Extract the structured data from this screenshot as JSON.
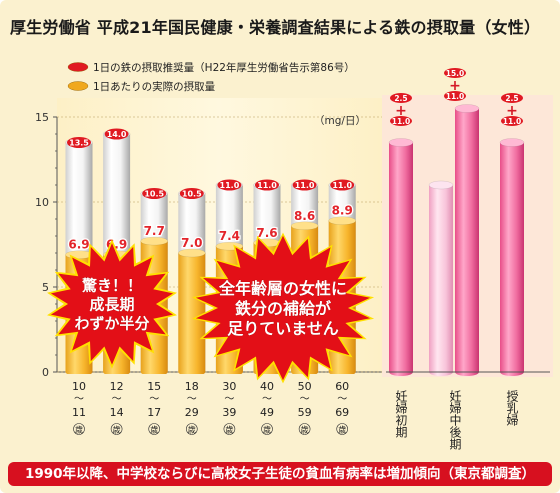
{
  "chart_data": {
    "type": "bar",
    "title": "厚生労働省 平成21年国民健康・栄養調査結果による鉄の摂取量（女性）",
    "unit_label": "（mg/日）",
    "ylim": [
      0,
      15
    ],
    "yticks": [
      "0",
      "5",
      "10",
      "15"
    ],
    "legend": [
      {
        "label": "1日の鉄の摂取推奨量（H22年厚生労働省告示第86号）",
        "color": "#e01a22"
      },
      {
        "label": "1日あたりの実際の摂取量",
        "color": "#f0a81e"
      }
    ],
    "categories": [
      {
        "top": "10",
        "bottom": "11"
      },
      {
        "top": "12",
        "bottom": "14"
      },
      {
        "top": "15",
        "bottom": "17"
      },
      {
        "top": "18",
        "bottom": "29"
      },
      {
        "top": "30",
        "bottom": "39"
      },
      {
        "top": "40",
        "bottom": "49"
      },
      {
        "top": "50",
        "bottom": "59"
      },
      {
        "top": "60",
        "bottom": "69"
      }
    ],
    "tilde": "〜",
    "age_unit": "歳",
    "series": [
      {
        "name": "1日の鉄の摂取推奨量",
        "values": [
          13.5,
          14.0,
          10.5,
          10.5,
          11.0,
          11.0,
          11.0,
          11.0
        ],
        "labels": [
          "13.5",
          "14.0",
          "10.5",
          "10.5",
          "11.0",
          "11.0",
          "11.0",
          "11.0"
        ]
      },
      {
        "name": "1日あたりの実際の摂取量",
        "values": [
          6.9,
          6.9,
          7.7,
          7.0,
          7.4,
          7.6,
          8.6,
          8.9
        ],
        "labels": [
          "6.9",
          "6.9",
          "7.7",
          "7.0",
          "7.4",
          "7.6",
          "8.6",
          "8.9"
        ]
      }
    ],
    "pregnancy_categories": [
      "妊婦初期",
      "妊婦中後期",
      "授乳婦"
    ],
    "pregnancy_series": [
      {
        "base": 11.0,
        "add": 2.5,
        "base_label": "11.0",
        "add_label": "2.5"
      },
      {
        "base": 11.0,
        "add": 15.0,
        "base_label": "11.0",
        "add_label": "15.0"
      },
      {
        "base": 11.0,
        "add": 2.5,
        "base_label": "11.0",
        "add_label": "2.5"
      }
    ],
    "pregnancy_bar_values": [
      13.5,
      11.0,
      15.5,
      13.5
    ],
    "plus_sign": "+",
    "colors": {
      "actual": "#f0a81e",
      "recommended": "#e01a22",
      "pink": "#e8488a",
      "pink_light": "#f5b4cf"
    }
  },
  "callouts": {
    "left": [
      "驚き！！",
      "成長期",
      "わずか半分"
    ],
    "right": [
      "全年齢層の女性に",
      "鉄分の補給が",
      "足りていません"
    ]
  },
  "footer": "1990年以降、中学校ならびに高校女子生徒の貧血有病率は増加傾向（東京都調査）"
}
